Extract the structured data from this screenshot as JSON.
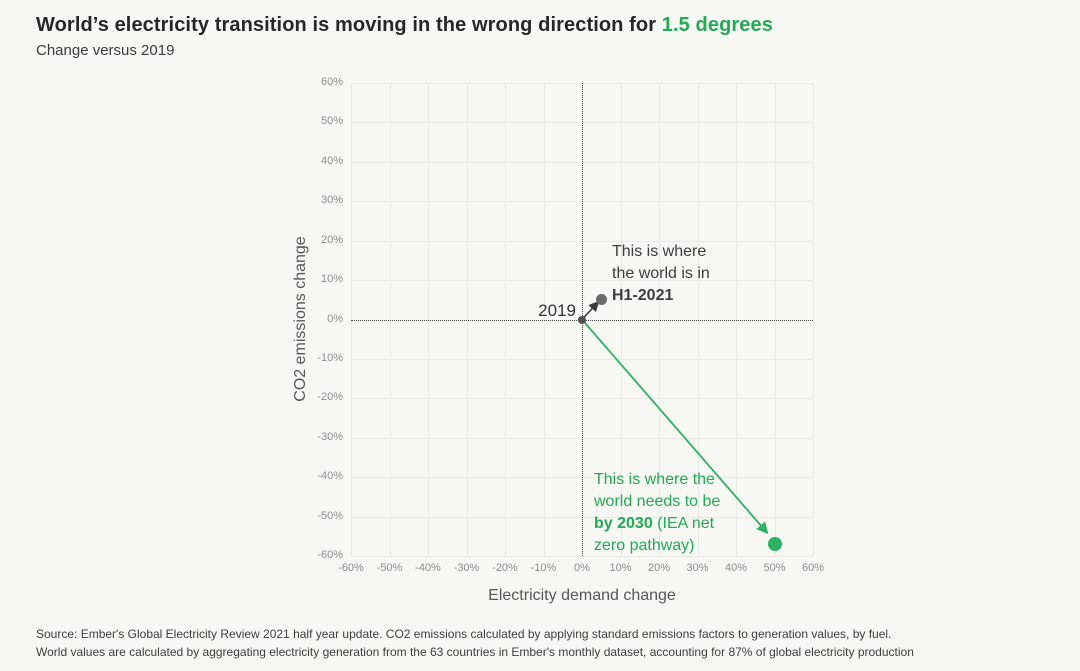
{
  "title": {
    "main": "World’s electricity transition is moving in the wrong direction for ",
    "highlight": "1.5 degrees"
  },
  "subtitle": "Change versus 2019",
  "colors": {
    "background": "#f7f7f4",
    "accent_green_text": "#23aa54",
    "accent_green_point": "#2db162",
    "dark_point": "#6a6a68",
    "origin_point": "#4f4f4d",
    "gridline": "#e8e8e4",
    "zero_line": "#4a4a48"
  },
  "chart_data": {
    "type": "scatter",
    "title": "World’s electricity transition is moving in the wrong direction for 1.5 degrees",
    "subtitle": "Change versus 2019",
    "xlabel": "Electricity demand change",
    "ylabel": "CO2 emissions change",
    "xlim": [
      -60,
      60
    ],
    "ylim": [
      -60,
      60
    ],
    "grid": true,
    "zero_lines": "dotted",
    "x_ticks": [
      "-60%",
      "-50%",
      "-40%",
      "-30%",
      "-20%",
      "-10%",
      "0%",
      "10%",
      "20%",
      "30%",
      "40%",
      "50%",
      "60%"
    ],
    "y_ticks": [
      "60%",
      "50%",
      "40%",
      "30%",
      "20%",
      "10%",
      "0%",
      "-10%",
      "-20%",
      "-30%",
      "-40%",
      "-50%",
      "-60%"
    ],
    "points": [
      {
        "name": "2019",
        "x": 0,
        "y": 0,
        "color": "#4f4f4d",
        "size": 8
      },
      {
        "name": "H1-2021",
        "x": 5,
        "y": 5,
        "color": "#6a6a68",
        "size": 11
      },
      {
        "name": "2030-IEA-net-zero",
        "x": 50,
        "y": -57,
        "color": "#2db162",
        "size": 14
      }
    ],
    "arrows": [
      {
        "name": "arrow-to-h1-2021",
        "from": [
          0,
          0
        ],
        "to": [
          4.1,
          4.3
        ],
        "color": "#3a3a38",
        "width": 1.6
      },
      {
        "name": "arrow-to-net-zero",
        "from": [
          0,
          0
        ],
        "to": [
          48,
          -54
        ],
        "color": "#2db162",
        "width": 1.8
      }
    ],
    "annotations": {
      "origin": "2019",
      "h1_2021": {
        "line1": "This is where",
        "line2": "the world is in",
        "bold": "H1-2021"
      },
      "net_zero": {
        "line1": "This is where the",
        "line2": "world needs to be",
        "line3_bold": "by 2030",
        "line3_rest": " (IEA net",
        "line4": "zero pathway)"
      }
    }
  },
  "footer": {
    "line1": "Source: Ember's Global Electricity Review 2021 half year update. CO2 emissions calculated by applying standard emissions factors to generation values, by fuel.",
    "line2": "World values are calculated by aggregating electricity generation from the 63 countries in Ember's monthly dataset, accounting for 87% of global electricity production"
  }
}
